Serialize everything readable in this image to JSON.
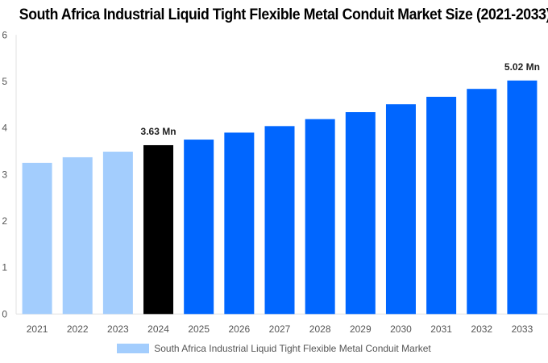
{
  "chart_data": {
    "type": "bar",
    "title": "South Africa Industrial Liquid Tight Flexible Metal Conduit Market Size (2021-2033)",
    "categories": [
      "2021",
      "2022",
      "2023",
      "2024",
      "2025",
      "2026",
      "2027",
      "2028",
      "2029",
      "2030",
      "2031",
      "2032",
      "2033"
    ],
    "values": [
      3.25,
      3.37,
      3.49,
      3.63,
      3.75,
      3.9,
      4.04,
      4.19,
      4.34,
      4.51,
      4.67,
      4.84,
      5.02
    ],
    "bar_colors": [
      "#a3cdfd",
      "#a3cdfd",
      "#a3cdfd",
      "#000000",
      "#0066ff",
      "#0066ff",
      "#0066ff",
      "#0066ff",
      "#0066ff",
      "#0066ff",
      "#0066ff",
      "#0066ff",
      "#0066ff"
    ],
    "data_labels": {
      "2024": "3.63 Mn",
      "2033": "5.02 Mn"
    },
    "ylim": [
      0,
      6
    ],
    "yticks": [
      0,
      1,
      2,
      3,
      4,
      5,
      6
    ],
    "grid": false,
    "xlabel": "",
    "ylabel": "",
    "legend": {
      "placement": "bottom",
      "entries": [
        {
          "label": "South Africa Industrial Liquid Tight Flexible Metal Conduit Market",
          "color": "#a3cdfd"
        }
      ]
    }
  }
}
